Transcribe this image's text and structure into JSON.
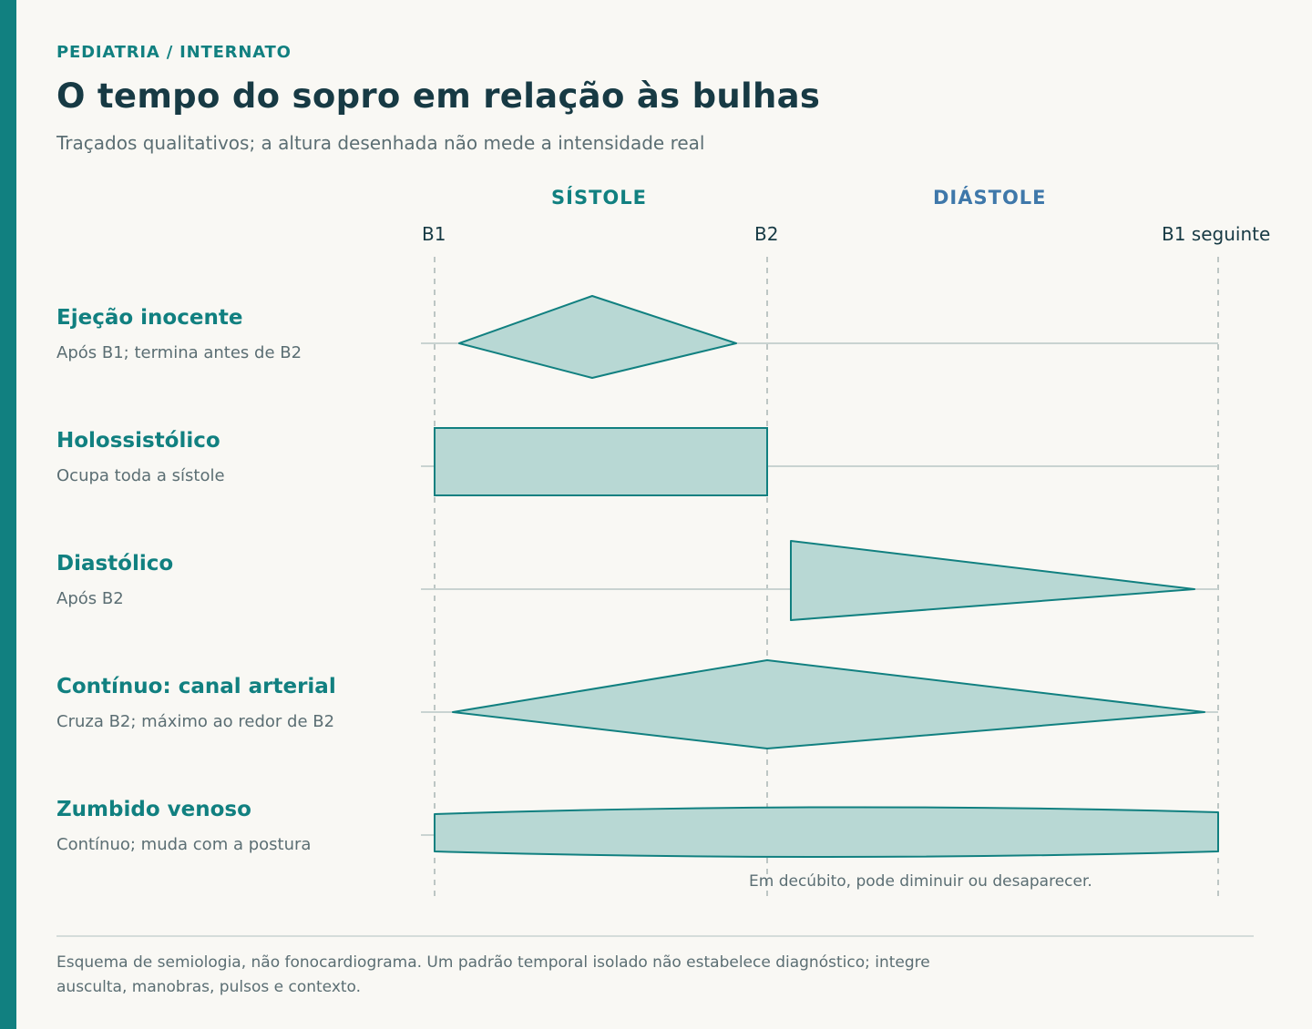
{
  "header": {
    "eyebrow": "PEDIATRIA / INTERNATO",
    "title": "O tempo do sopro em relação às bulhas",
    "subtitle": "Traçados qualitativos; a altura desenhada não mede a intensidade real"
  },
  "phases": {
    "systole": "SÍSTOLE",
    "diastole": "DIÁSTOLE"
  },
  "markers": {
    "b1": "B1",
    "b2": "B2",
    "b1_next": "B1 seguinte"
  },
  "rows": [
    {
      "title": "Ejeção inocente",
      "note": "Após B1; termina antes de B2"
    },
    {
      "title": "Holossistólico",
      "note": "Ocupa toda a sístole"
    },
    {
      "title": "Diastólico",
      "note": "Após B2"
    },
    {
      "title": "Contínuo: canal arterial",
      "note": "Cruza B2; máximo ao redor de B2"
    },
    {
      "title": "Zumbido venoso",
      "note": "Contínuo; muda com a postura"
    }
  ],
  "venous_hum_note": "Em decúbito, pode diminuir ou desaparecer.",
  "disclaimer": "Esquema de semiologia, não fonocardiograma. Um padrão temporal isolado não estabelece diagnóstico; integre ausculta, manobras, pulsos e contexto.",
  "colors": {
    "accent": "#118080",
    "diastole": "#3f78aa",
    "shape_fill": "#b8d8d4",
    "title_text": "#173a44"
  }
}
